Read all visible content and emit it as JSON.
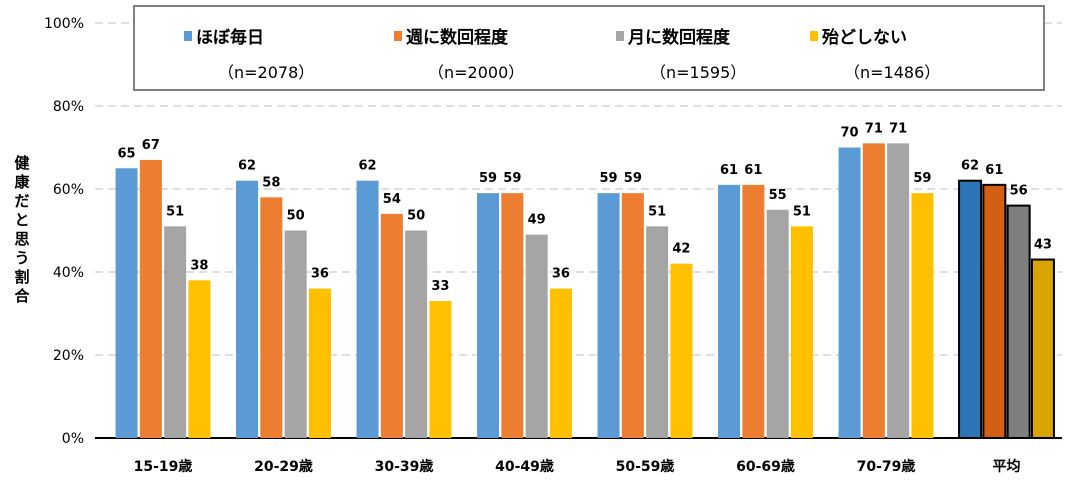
{
  "chart_data": {
    "type": "bar",
    "title": "",
    "xlabel": "",
    "ylabel": "健康だと思う割合",
    "ylim": [
      0,
      100
    ],
    "yticks": [
      "0%",
      "20%",
      "40%",
      "60%",
      "80%",
      "100%"
    ],
    "grid": true,
    "legend_position": "top",
    "categories": [
      "15-19歳",
      "20-29歳",
      "30-39歳",
      "40-49歳",
      "50-59歳",
      "60-69歳",
      "70-79歳",
      "平均"
    ],
    "series": [
      {
        "name": "ほぼ毎日",
        "n": "（n=2078）",
        "color": "#5b9bd5",
        "avg_color": "#2e75b6",
        "values": [
          65,
          62,
          62,
          59,
          59,
          61,
          70,
          62
        ]
      },
      {
        "name": "週に数回程度",
        "n": "（n=2000）",
        "color": "#ed7d31",
        "avg_color": "#d35f13",
        "values": [
          67,
          58,
          54,
          59,
          59,
          61,
          71,
          61
        ]
      },
      {
        "name": "月に数回程度",
        "n": "（n=1595）",
        "color": "#a5a5a5",
        "avg_color": "#7f7f7f",
        "values": [
          51,
          50,
          50,
          49,
          51,
          55,
          71,
          56
        ]
      },
      {
        "name": "殆どしない",
        "n": "（n=1486）",
        "color": "#ffc000",
        "avg_color": "#d9a300",
        "values": [
          38,
          36,
          33,
          36,
          42,
          51,
          59,
          43
        ]
      }
    ]
  }
}
